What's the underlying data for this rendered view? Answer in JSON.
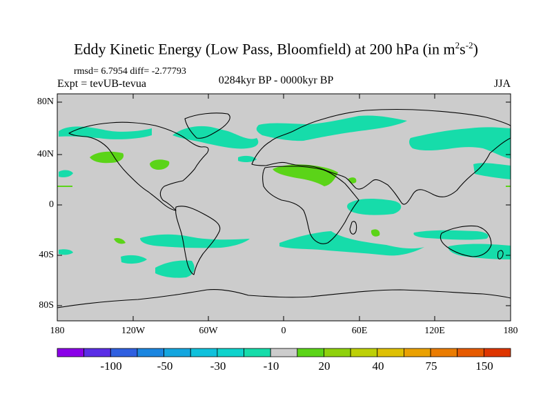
{
  "title": {
    "main": "Eddy Kinetic Energy (Low Pass, Bloomfield) at 200 hPa (in m",
    "exp1": "2",
    "mid": "s",
    "exp2": "-2",
    "end": ")"
  },
  "stats": "rmsd= 6.7954 diff= -2.77793",
  "experiment": "Expt = tevUB-tevua",
  "period": "0284kyr BP - 0000kyr BP",
  "season": "JJA",
  "lat_ticks": [
    "80N",
    "40N",
    "0",
    "40S",
    "80S"
  ],
  "lon_ticks": [
    "180",
    "120W",
    "60W",
    "0",
    "60E",
    "120E",
    "180"
  ],
  "colorbar": {
    "labels": [
      "-100",
      "-50",
      "-30",
      "-10",
      "20",
      "40",
      "75",
      "150"
    ],
    "colors": [
      "#8b00e8",
      "#5a2ee6",
      "#2f5fe0",
      "#1b86e0",
      "#14a6df",
      "#10c1dc",
      "#0fd3cc",
      "#16dcaa",
      "#cccccc",
      "#5bd418",
      "#8fd10c",
      "#bdd007",
      "#dec004",
      "#eaa102",
      "#ea7c01",
      "#e65a00",
      "#de3500"
    ]
  },
  "map": {
    "ocean_color": "#cccccc",
    "anomaly_colors": {
      "cyan": "#16dcaa",
      "green": "#5bd418"
    }
  }
}
